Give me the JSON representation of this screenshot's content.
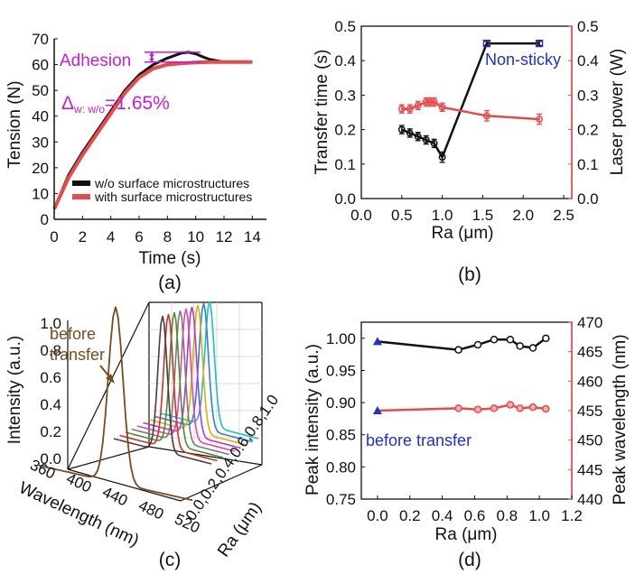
{
  "colors": {
    "black": "#111111",
    "red": "#e84a4a",
    "red_light": "#f08a8a",
    "magenta": "#c21fd6",
    "blue": "#1f2fd0",
    "brown": "#7a4a1e",
    "waterfall": [
      "#16c2c9",
      "#2f7fe0",
      "#e0b000",
      "#aa3bd3",
      "#e04aa0",
      "#7a7a7a",
      "#4a8f2a",
      "#d0302a",
      "#503a3a"
    ]
  },
  "chart_data": [
    {
      "id": "a",
      "type": "line",
      "panel_label": "(a)",
      "xlabel": "Time (s)",
      "ylabel": "Tension (N)",
      "xlim": [
        0,
        15
      ],
      "ylim": [
        0,
        70
      ],
      "xticks": [
        0,
        2,
        4,
        6,
        8,
        10,
        12,
        14
      ],
      "yticks": [
        0,
        10,
        20,
        30,
        40,
        50,
        60,
        70
      ],
      "legend_position": "bottom-right",
      "annotations": {
        "adhesion": "Adhesion",
        "delta_symbol": "Δ",
        "delta_subscript": "w: w/o",
        "delta_value": "=1.65%"
      },
      "series": [
        {
          "name": "w/o surface microstructures",
          "color": "#111111",
          "x": [
            0,
            1,
            2,
            3,
            4,
            5,
            6,
            7,
            8,
            8.5,
            9,
            9.5,
            10,
            10.5,
            11,
            12,
            13,
            14
          ],
          "y": [
            4,
            17,
            26,
            34,
            42,
            50,
            56,
            60,
            62.5,
            63.5,
            64.5,
            64.8,
            64.2,
            63,
            62,
            61,
            61,
            61
          ]
        },
        {
          "name": "with surface microstructures",
          "color": "#e84a4a",
          "x": [
            0,
            1,
            2,
            3,
            4,
            5,
            6,
            7,
            8,
            9,
            10,
            11,
            12,
            13,
            14
          ],
          "y": [
            4,
            16,
            25,
            33,
            41,
            49,
            55,
            58.5,
            60,
            60.5,
            60.8,
            61,
            61,
            61,
            61
          ]
        }
      ]
    },
    {
      "id": "b",
      "type": "line",
      "panel_label": "(b)",
      "xlabel": "Ra (μm)",
      "ylabel_left": "Transfer time (s)",
      "ylabel_right": "Laser power (W)",
      "xlim": [
        0,
        2.6
      ],
      "ylim_left": [
        0,
        0.5
      ],
      "ylim_right": [
        0,
        0.5
      ],
      "xticks": [
        0.0,
        0.5,
        1.0,
        1.5,
        2.0,
        2.5
      ],
      "yticks_left": [
        0.0,
        0.1,
        0.2,
        0.3,
        0.4,
        0.5
      ],
      "yticks_right": [
        0.0,
        0.1,
        0.2,
        0.3,
        0.4,
        0.5
      ],
      "annotation": "Non-sticky",
      "series": [
        {
          "axis": "left",
          "color": "#111111",
          "x": [
            0.5,
            0.6,
            0.7,
            0.8,
            0.9,
            1.0,
            1.55,
            2.2
          ],
          "y": [
            0.2,
            0.19,
            0.18,
            0.17,
            0.16,
            0.12,
            0.45,
            0.45
          ],
          "err": [
            0.012,
            0.012,
            0.012,
            0.012,
            0.012,
            0.015,
            0.006,
            0.006
          ]
        },
        {
          "axis": "right",
          "color": "#e84a4a",
          "x": [
            0.5,
            0.6,
            0.7,
            0.8,
            0.85,
            0.9,
            1.0,
            1.55,
            2.2
          ],
          "y": [
            0.26,
            0.26,
            0.27,
            0.28,
            0.28,
            0.28,
            0.265,
            0.24,
            0.23
          ],
          "err": [
            0.012,
            0.012,
            0.012,
            0.012,
            0.012,
            0.012,
            0.012,
            0.015,
            0.015
          ]
        }
      ]
    },
    {
      "id": "c",
      "type": "line",
      "panel_label": "(c)",
      "xlabel": "Wavelength (nm)",
      "ylabel": "Intensity (a.u.)",
      "zlabel": "Ra (μm)",
      "xticks": [
        360,
        400,
        440,
        480,
        520
      ],
      "yticks": [
        0.0,
        0.2,
        0.4,
        0.6,
        0.8,
        1.0
      ],
      "ra_ticks_label": "0.0,0.2,0.4,0.6,0.8,1.0",
      "annotation": "before transfer",
      "peak_wavelength": 455,
      "series_count": 9
    },
    {
      "id": "d",
      "type": "line",
      "panel_label": "(d)",
      "xlabel": "Ra (μm)",
      "ylabel_left": "Peak intensity (a.u.)",
      "ylabel_right": "Peak wavelength (nm)",
      "xlim": [
        -0.1,
        1.2
      ],
      "ylim_left": [
        0.75,
        1.025
      ],
      "ylim_right": [
        440,
        470
      ],
      "xticks": [
        0.0,
        0.2,
        0.4,
        0.6,
        0.8,
        1.0,
        1.2
      ],
      "yticks_left": [
        0.75,
        0.8,
        0.85,
        0.9,
        0.95,
        1.0
      ],
      "yticks_right": [
        440,
        445,
        450,
        455,
        460,
        465,
        470
      ],
      "annotation": "before transfer",
      "series": [
        {
          "axis": "left",
          "color": "#111111",
          "x": [
            0.0,
            0.5,
            0.62,
            0.72,
            0.82,
            0.88,
            0.96,
            1.04
          ],
          "y": [
            0.995,
            0.982,
            0.99,
            0.998,
            0.998,
            0.988,
            0.985,
            1.0
          ]
        },
        {
          "axis": "right",
          "color": "#e84a4a",
          "x": [
            0.0,
            0.5,
            0.62,
            0.72,
            0.82,
            0.88,
            0.96,
            1.04
          ],
          "y": [
            455.0,
            455.4,
            455.2,
            455.4,
            456.0,
            455.4,
            455.6,
            455.3
          ]
        }
      ],
      "before_transfer_markers": [
        {
          "axis": "left",
          "x": 0.0,
          "y": 0.995
        },
        {
          "axis": "right",
          "x": 0.0,
          "y": 455.0
        }
      ]
    }
  ]
}
